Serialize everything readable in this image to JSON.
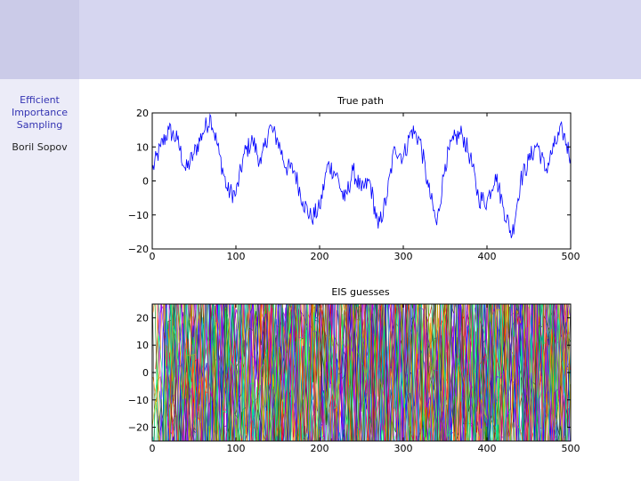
{
  "sidebar": {
    "title": "Efficient\nImportance\nSampling",
    "author": "Boril Sopov"
  },
  "theme": {
    "header_color": "#d6d6f0",
    "sidebar_color": "#ececf8",
    "sidebar_title_color": "#3333b2",
    "line_color": "#0000ff"
  },
  "chart_data": [
    {
      "type": "line",
      "title": "True path",
      "xlim": [
        0,
        500
      ],
      "ylim": [
        -20,
        20
      ],
      "xticks": [
        "0",
        "100",
        "200",
        "300",
        "400",
        "500"
      ],
      "yticks": [
        "−20",
        "−10",
        "0",
        "10",
        "20"
      ],
      "grid": false,
      "series": [
        {
          "color": "#0000ff",
          "x": [
            0,
            10,
            20,
            30,
            40,
            50,
            60,
            70,
            80,
            90,
            100,
            110,
            120,
            130,
            140,
            150,
            160,
            170,
            180,
            190,
            200,
            210,
            220,
            230,
            240,
            250,
            260,
            270,
            280,
            290,
            300,
            310,
            320,
            330,
            340,
            350,
            360,
            370,
            380,
            390,
            400,
            410,
            420,
            430,
            440,
            450,
            460,
            470,
            480,
            490,
            500
          ],
          "values": [
            3,
            10,
            15,
            12,
            3,
            8,
            14,
            19,
            8,
            -3,
            -4,
            8,
            12,
            5,
            16,
            12,
            4,
            3,
            -6,
            -11,
            -8,
            5,
            2,
            -6,
            3,
            -3,
            0,
            -14,
            -5,
            10,
            7,
            15,
            12,
            -2,
            -13,
            5,
            12,
            14,
            7,
            -5,
            -6,
            2,
            -8,
            -16,
            0,
            6,
            11,
            3,
            10,
            15,
            7
          ]
        }
      ]
    },
    {
      "type": "line",
      "title": "EIS guesses",
      "xlim": [
        0,
        500
      ],
      "ylim": [
        -25,
        25
      ],
      "xticks": [
        "0",
        "100",
        "200",
        "300",
        "400",
        "500"
      ],
      "yticks": [
        "−20",
        "−10",
        "0",
        "10",
        "20"
      ],
      "grid": false,
      "series_count": 30,
      "palette": [
        "#0000ff",
        "#008000",
        "#ff0000",
        "#00bfbf",
        "#bf00bf",
        "#bfbf00",
        "#404040",
        "#ff8000",
        "#8000ff",
        "#00ff80"
      ]
    }
  ]
}
